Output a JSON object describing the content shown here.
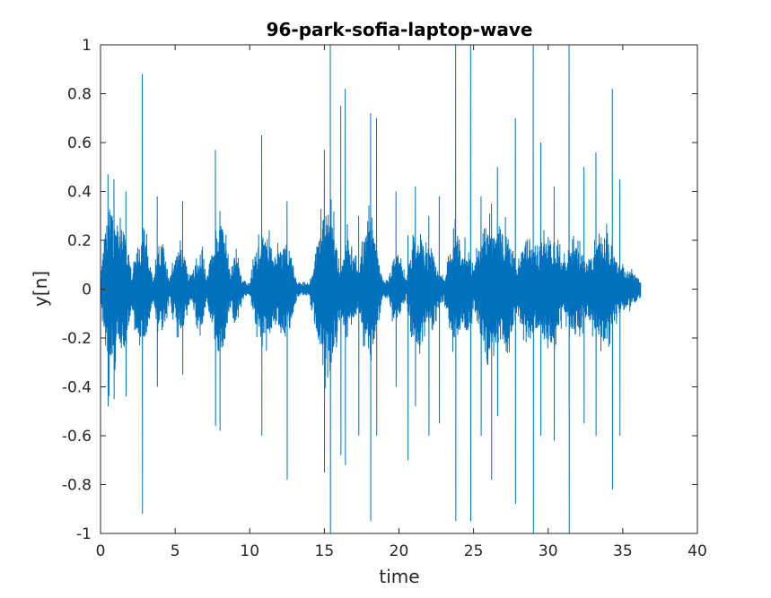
{
  "chart_data": {
    "type": "line",
    "title": "96-park-sofia-laptop-wave",
    "xlabel": "time",
    "ylabel": "y[n]",
    "xlim": [
      0,
      40
    ],
    "ylim": [
      -1,
      1
    ],
    "xticks": [
      0,
      5,
      10,
      15,
      20,
      25,
      30,
      35,
      40
    ],
    "yticks": [
      -1,
      -0.8,
      -0.6,
      -0.4,
      -0.2,
      0,
      0.2,
      0.4,
      0.6,
      0.8,
      1
    ],
    "grid": false,
    "color": "#0072BD",
    "series": [
      {
        "signal_end": 36.2,
        "envelope": [
          [
            0.0,
            0.05
          ],
          [
            0.3,
            0.3
          ],
          [
            0.6,
            0.45
          ],
          [
            0.9,
            0.35
          ],
          [
            1.2,
            0.28
          ],
          [
            1.5,
            0.35
          ],
          [
            1.8,
            0.25
          ],
          [
            2.1,
            0.08
          ],
          [
            2.4,
            0.22
          ],
          [
            2.8,
            0.3
          ],
          [
            3.1,
            0.25
          ],
          [
            3.5,
            0.06
          ],
          [
            3.9,
            0.2
          ],
          [
            4.2,
            0.25
          ],
          [
            4.6,
            0.05
          ],
          [
            5.1,
            0.2
          ],
          [
            5.5,
            0.22
          ],
          [
            6.0,
            0.05
          ],
          [
            6.4,
            0.15
          ],
          [
            6.8,
            0.22
          ],
          [
            7.1,
            0.06
          ],
          [
            7.6,
            0.25
          ],
          [
            7.9,
            0.38
          ],
          [
            8.3,
            0.3
          ],
          [
            8.7,
            0.1
          ],
          [
            9.0,
            0.2
          ],
          [
            9.5,
            0.05
          ],
          [
            10.0,
            0.03
          ],
          [
            10.4,
            0.2
          ],
          [
            10.8,
            0.3
          ],
          [
            11.2,
            0.28
          ],
          [
            11.6,
            0.18
          ],
          [
            12.0,
            0.2
          ],
          [
            12.4,
            0.25
          ],
          [
            12.8,
            0.2
          ],
          [
            13.1,
            0.05
          ],
          [
            13.5,
            0.03
          ],
          [
            14.0,
            0.04
          ],
          [
            14.5,
            0.25
          ],
          [
            15.0,
            0.4
          ],
          [
            15.4,
            0.45
          ],
          [
            15.8,
            0.25
          ],
          [
            16.1,
            0.1
          ],
          [
            16.5,
            0.3
          ],
          [
            16.9,
            0.2
          ],
          [
            17.3,
            0.1
          ],
          [
            17.7,
            0.3
          ],
          [
            18.1,
            0.38
          ],
          [
            18.5,
            0.2
          ],
          [
            18.9,
            0.05
          ],
          [
            19.3,
            0.05
          ],
          [
            19.7,
            0.2
          ],
          [
            20.1,
            0.15
          ],
          [
            20.5,
            0.05
          ],
          [
            21.0,
            0.3
          ],
          [
            21.4,
            0.32
          ],
          [
            21.8,
            0.2
          ],
          [
            22.2,
            0.25
          ],
          [
            22.6,
            0.1
          ],
          [
            23.0,
            0.05
          ],
          [
            23.4,
            0.22
          ],
          [
            23.8,
            0.3
          ],
          [
            24.2,
            0.2
          ],
          [
            24.6,
            0.25
          ],
          [
            25.0,
            0.1
          ],
          [
            25.4,
            0.25
          ],
          [
            25.8,
            0.35
          ],
          [
            26.2,
            0.3
          ],
          [
            26.6,
            0.3
          ],
          [
            27.0,
            0.32
          ],
          [
            27.4,
            0.28
          ],
          [
            27.8,
            0.15
          ],
          [
            28.2,
            0.2
          ],
          [
            28.6,
            0.3
          ],
          [
            29.0,
            0.25
          ],
          [
            29.4,
            0.2
          ],
          [
            29.8,
            0.28
          ],
          [
            30.2,
            0.3
          ],
          [
            30.6,
            0.22
          ],
          [
            31.0,
            0.15
          ],
          [
            31.4,
            0.2
          ],
          [
            31.8,
            0.25
          ],
          [
            32.2,
            0.2
          ],
          [
            32.6,
            0.15
          ],
          [
            33.0,
            0.2
          ],
          [
            33.4,
            0.25
          ],
          [
            33.8,
            0.3
          ],
          [
            34.2,
            0.22
          ],
          [
            34.6,
            0.15
          ],
          [
            35.0,
            0.12
          ],
          [
            35.4,
            0.1
          ],
          [
            35.8,
            0.08
          ],
          [
            36.2,
            0.05
          ]
        ],
        "peaks": [
          [
            0.5,
            0.47,
            -0.48
          ],
          [
            0.9,
            0.45,
            -0.45
          ],
          [
            1.7,
            0.4,
            -0.44
          ],
          [
            2.8,
            0.88,
            -0.92
          ],
          [
            3.8,
            0.38,
            -0.4
          ],
          [
            5.5,
            0.36,
            -0.35
          ],
          [
            7.7,
            0.57,
            -0.56
          ],
          [
            8.0,
            0.32,
            -0.58
          ],
          [
            10.8,
            0.63,
            -0.6
          ],
          [
            12.5,
            0.36,
            -0.78
          ],
          [
            15.0,
            0.57,
            -0.75
          ],
          [
            15.4,
            1.0,
            -1.0
          ],
          [
            16.1,
            0.75,
            -0.68
          ],
          [
            16.4,
            0.82,
            -0.72
          ],
          [
            17.3,
            0.3,
            -0.6
          ],
          [
            18.1,
            0.72,
            -0.95
          ],
          [
            18.5,
            0.7,
            -0.6
          ],
          [
            19.8,
            0.4,
            -0.4
          ],
          [
            20.6,
            0.22,
            -0.7
          ],
          [
            21.1,
            0.42,
            -0.48
          ],
          [
            22.0,
            0.3,
            -0.6
          ],
          [
            22.7,
            0.38,
            -0.55
          ],
          [
            23.8,
            1.0,
            -0.95
          ],
          [
            24.8,
            1.0,
            -0.95
          ],
          [
            25.5,
            0.38,
            -0.6
          ],
          [
            26.2,
            0.35,
            -0.78
          ],
          [
            26.6,
            0.5,
            -0.52
          ],
          [
            27.8,
            0.7,
            -0.88
          ],
          [
            29.0,
            1.0,
            -1.0
          ],
          [
            29.5,
            0.6,
            -0.6
          ],
          [
            30.4,
            0.42,
            -0.62
          ],
          [
            31.4,
            1.0,
            -1.0
          ],
          [
            32.4,
            0.5,
            -0.55
          ],
          [
            33.2,
            0.56,
            -0.6
          ],
          [
            34.3,
            0.82,
            -0.82
          ],
          [
            34.8,
            0.45,
            -0.6
          ]
        ]
      }
    ]
  }
}
